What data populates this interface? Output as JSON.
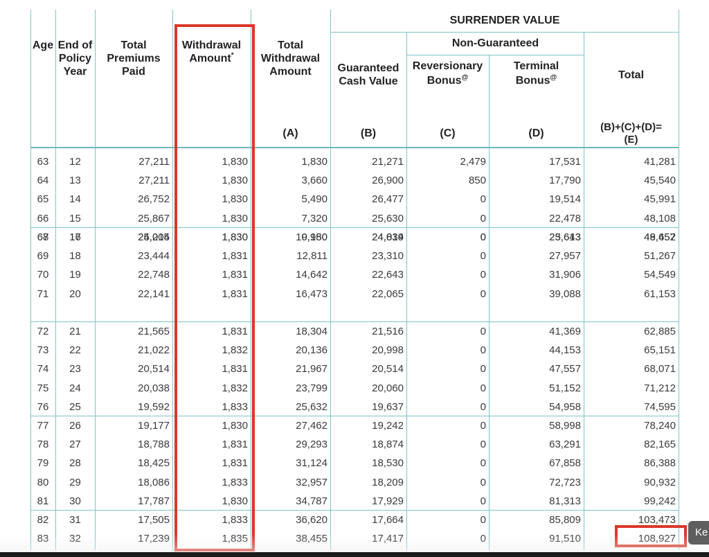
{
  "headers": {
    "age": "Age",
    "policy_year": [
      "End of",
      "Policy",
      "Year"
    ],
    "total_premiums": [
      "Total",
      "Premiums",
      "Paid"
    ],
    "withdrawal": [
      "Withdrawal",
      "Amount"
    ],
    "withdrawal_mark": "*",
    "total_withdrawal": [
      "Total",
      "Withdrawal",
      "Amount"
    ],
    "total_withdrawal_code": "(A)",
    "surrender_value": "SURRENDER VALUE",
    "non_guaranteed": "Non-Guaranteed",
    "guaranteed_cash": [
      "Guaranteed",
      "Cash Value"
    ],
    "guaranteed_cash_code": "(B)",
    "reversionary": [
      "Reversionary",
      "Bonus"
    ],
    "reversionary_code": "(C)",
    "terminal": [
      "Terminal",
      "Bonus"
    ],
    "terminal_code": "(D)",
    "bonus_mark": "@",
    "total": "Total",
    "total_formula": [
      "(B)+(C)+(D)=",
      "(E)"
    ]
  },
  "rows": [
    [
      "63",
      "12",
      "27,211",
      "1,830",
      "1,830",
      "21,271",
      "2,479",
      "17,531",
      "41,281"
    ],
    [
      "64",
      "13",
      "27,211",
      "1,830",
      "3,660",
      "26,900",
      "850",
      "17,790",
      "45,540"
    ],
    [
      "65",
      "14",
      "26,752",
      "1,830",
      "5,490",
      "26,477",
      "0",
      "19,514",
      "45,991"
    ],
    [
      "66",
      "15",
      "25,867",
      "1,830",
      "7,320",
      "25,630",
      "0",
      "22,478",
      "48,108"
    ],
    [
      "67",
      "16",
      "25,014",
      "1,830",
      "9,150",
      "24,814",
      "0",
      "23,643",
      "48,457"
    ],
    [
      "68",
      "17",
      "24,205",
      "1,830",
      "10,980",
      "24,039",
      "0",
      "25,613",
      "49,652"
    ],
    [
      "69",
      "18",
      "23,444",
      "1,831",
      "12,811",
      "23,310",
      "0",
      "27,957",
      "51,267"
    ],
    [
      "70",
      "19",
      "22,748",
      "1,831",
      "14,642",
      "22,643",
      "0",
      "31,906",
      "54,549"
    ],
    [
      "71",
      "20",
      "22,141",
      "1,831",
      "16,473",
      "22,065",
      "0",
      "39,088",
      "61,153"
    ],
    [
      "72",
      "21",
      "21,565",
      "1,831",
      "18,304",
      "21,516",
      "0",
      "41,369",
      "62,885"
    ],
    [
      "73",
      "22",
      "21,022",
      "1,832",
      "20,136",
      "20,998",
      "0",
      "44,153",
      "65,151"
    ],
    [
      "74",
      "23",
      "20,514",
      "1,831",
      "21,967",
      "20,514",
      "0",
      "47,557",
      "68,071"
    ],
    [
      "75",
      "24",
      "20,038",
      "1,832",
      "23,799",
      "20,060",
      "0",
      "51,152",
      "71,212"
    ],
    [
      "76",
      "25",
      "19,592",
      "1,833",
      "25,632",
      "19,637",
      "0",
      "54,958",
      "74,595"
    ],
    [
      "77",
      "26",
      "19,177",
      "1,830",
      "27,462",
      "19,242",
      "0",
      "58,998",
      "78,240"
    ],
    [
      "78",
      "27",
      "18,788",
      "1,831",
      "29,293",
      "18,874",
      "0",
      "63,291",
      "82,165"
    ],
    [
      "79",
      "28",
      "18,425",
      "1,831",
      "31,124",
      "18,530",
      "0",
      "67,858",
      "86,388"
    ],
    [
      "80",
      "29",
      "18,086",
      "1,833",
      "32,957",
      "18,209",
      "0",
      "72,723",
      "90,932"
    ],
    [
      "81",
      "30",
      "17,787",
      "1,830",
      "34,787",
      "17,929",
      "0",
      "81,313",
      "99,242"
    ],
    [
      "82",
      "31",
      "17,505",
      "1,833",
      "36,620",
      "17,664",
      "0",
      "85,809",
      "103,473"
    ],
    [
      "83",
      "32",
      "17,239",
      "1,835",
      "38,455",
      "17,417",
      "0",
      "91,510",
      "108,927"
    ]
  ],
  "tooltip": "Ke",
  "colors": {
    "grid": "#7fc4c4",
    "highlight": "#d9382a"
  }
}
